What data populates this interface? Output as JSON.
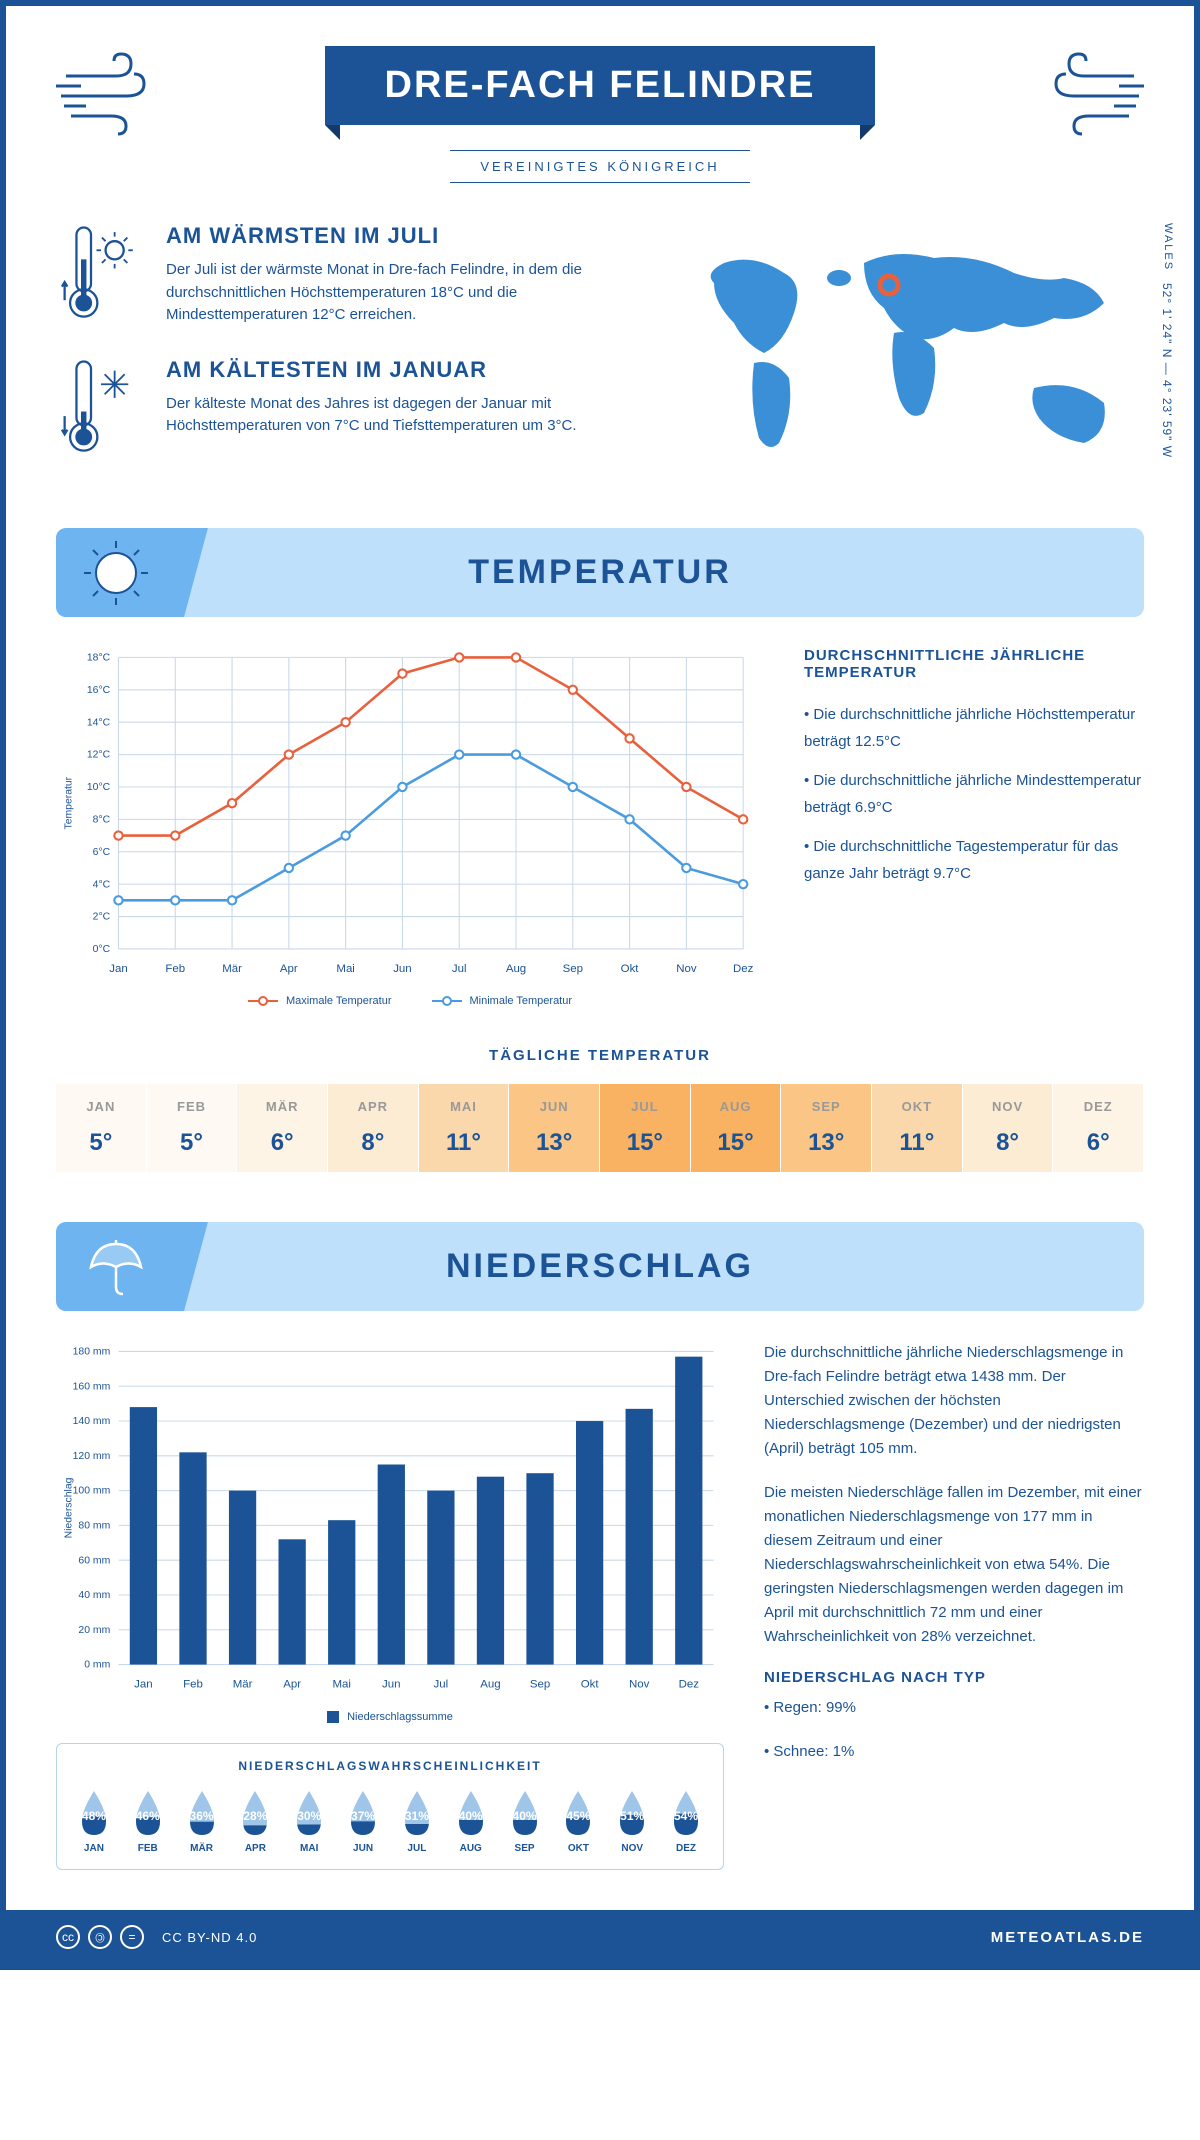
{
  "header": {
    "title": "DRE-FACH FELINDRE",
    "country": "VEREINIGTES KÖNIGREICH",
    "region": "WALES",
    "coords": "52° 1' 24\" N — 4° 23' 59\" W"
  },
  "facts": {
    "warm": {
      "title": "AM WÄRMSTEN IM JULI",
      "text": "Der Juli ist der wärmste Monat in Dre-fach Felindre, in dem die durchschnittlichen Höchsttemperaturen 18°C und die Mindesttemperaturen 12°C erreichen."
    },
    "cold": {
      "title": "AM KÄLTESTEN IM JANUAR",
      "text": "Der kälteste Monat des Jahres ist dagegen der Januar mit Höchsttemperaturen von 7°C und Tiefsttemperaturen um 3°C."
    }
  },
  "sections": {
    "temp": "TEMPERATUR",
    "precip": "NIEDERSCHLAG"
  },
  "temp_chart": {
    "type": "line",
    "months": [
      "Jan",
      "Feb",
      "Mär",
      "Apr",
      "Mai",
      "Jun",
      "Jul",
      "Aug",
      "Sep",
      "Okt",
      "Nov",
      "Dez"
    ],
    "max_values": [
      7,
      7,
      9,
      12,
      14,
      17,
      18,
      18,
      16,
      13,
      10,
      8
    ],
    "min_values": [
      3,
      3,
      3,
      5,
      7,
      10,
      12,
      12,
      10,
      8,
      5,
      4
    ],
    "max_color": "#e8603c",
    "min_color": "#4a9be0",
    "grid_color": "#c8d8e8",
    "ylim": [
      0,
      18
    ],
    "ytick_step": 2,
    "ylabel": "Temperatur",
    "legend_max": "Maximale Temperatur",
    "legend_min": "Minimale Temperatur"
  },
  "temp_info": {
    "title": "DURCHSCHNITTLICHE JÄHRLICHE TEMPERATUR",
    "bullets": [
      "• Die durchschnittliche jährliche Höchsttemperatur beträgt 12.5°C",
      "• Die durchschnittliche jährliche Mindesttemperatur beträgt 6.9°C",
      "• Die durchschnittliche Tagestemperatur für das ganze Jahr beträgt 9.7°C"
    ]
  },
  "daily_temp": {
    "title": "TÄGLICHE TEMPERATUR",
    "months": [
      "JAN",
      "FEB",
      "MÄR",
      "APR",
      "MAI",
      "JUN",
      "JUL",
      "AUG",
      "SEP",
      "OKT",
      "NOV",
      "DEZ"
    ],
    "values": [
      "5°",
      "5°",
      "6°",
      "8°",
      "11°",
      "13°",
      "15°",
      "15°",
      "13°",
      "11°",
      "8°",
      "6°"
    ],
    "colors": [
      "#fefaf3",
      "#fefaf3",
      "#fef4e6",
      "#fdecd4",
      "#fbd8ab",
      "#fac585",
      "#f8b262",
      "#f8b262",
      "#fac585",
      "#fbd8ab",
      "#fdecd4",
      "#fef4e6"
    ]
  },
  "precip_chart": {
    "type": "bar",
    "months": [
      "Jan",
      "Feb",
      "Mär",
      "Apr",
      "Mai",
      "Jun",
      "Jul",
      "Aug",
      "Sep",
      "Okt",
      "Nov",
      "Dez"
    ],
    "values": [
      148,
      122,
      100,
      72,
      83,
      115,
      100,
      108,
      110,
      140,
      147,
      177
    ],
    "bar_color": "#1b5396",
    "grid_color": "#c8d8e8",
    "ylim": [
      0,
      180
    ],
    "ytick_step": 20,
    "ylabel": "Niederschlag",
    "legend": "Niederschlagssumme"
  },
  "precip_text": {
    "p1": "Die durchschnittliche jährliche Niederschlagsmenge in Dre-fach Felindre beträgt etwa 1438 mm. Der Unterschied zwischen der höchsten Niederschlagsmenge (Dezember) und der niedrigsten (April) beträgt 105 mm.",
    "p2": "Die meisten Niederschläge fallen im Dezember, mit einer monatlichen Niederschlagsmenge von 177 mm in diesem Zeitraum und einer Niederschlagswahrscheinlichkeit von etwa 54%. Die geringsten Niederschlagsmengen werden dagegen im April mit durchschnittlich 72 mm und einer Wahrscheinlichkeit von 28% verzeichnet.",
    "type_title": "NIEDERSCHLAG NACH TYP",
    "types": [
      "• Regen: 99%",
      "• Schnee: 1%"
    ]
  },
  "probability": {
    "title": "NIEDERSCHLAGSWAHRSCHEINLICHKEIT",
    "months": [
      "JAN",
      "FEB",
      "MÄR",
      "APR",
      "MAI",
      "JUN",
      "JUL",
      "AUG",
      "SEP",
      "OKT",
      "NOV",
      "DEZ"
    ],
    "values": [
      "48%",
      "46%",
      "36%",
      "28%",
      "30%",
      "37%",
      "31%",
      "40%",
      "40%",
      "45%",
      "51%",
      "54%"
    ],
    "fills": [
      48,
      46,
      36,
      28,
      30,
      37,
      31,
      40,
      40,
      45,
      51,
      54
    ],
    "drop_fill": "#1b5396",
    "drop_empty": "#9fc5e8"
  },
  "footer": {
    "license": "CC BY-ND 4.0",
    "brand": "METEOATLAS.DE"
  }
}
